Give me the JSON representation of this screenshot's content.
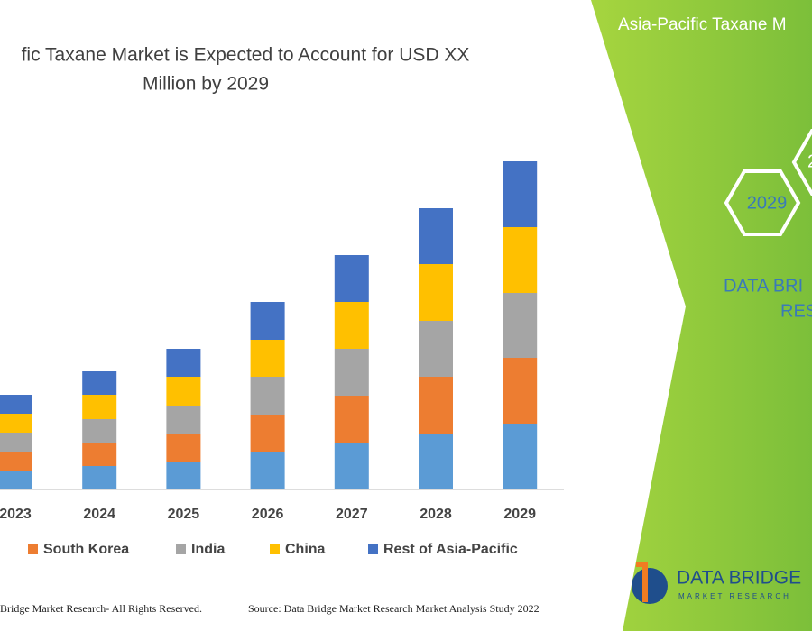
{
  "chart_data": {
    "type": "stacked_bar",
    "title_lines": [
      "fic Taxane Market is Expected to Account for USD XX",
      "Million by 2029"
    ],
    "categories": [
      "2023",
      "2024",
      "2025",
      "2026",
      "2027",
      "2028",
      "2029"
    ],
    "series": [
      {
        "name": null,
        "color": "#5b9bd5",
        "values": [
          21,
          26,
          31,
          42,
          52,
          62,
          73
        ]
      },
      {
        "name": "South Korea",
        "color": "#ed7d31",
        "values": [
          21,
          26,
          31,
          41,
          52,
          63,
          73
        ]
      },
      {
        "name": "India",
        "color": "#a5a5a5",
        "values": [
          21,
          26,
          31,
          42,
          52,
          62,
          72
        ]
      },
      {
        "name": "China",
        "color": "#ffc000",
        "values": [
          21,
          27,
          32,
          41,
          52,
          63,
          73
        ]
      },
      {
        "name": "Rest of Asia-Pacific",
        "color": "#4472c4",
        "values": [
          21,
          26,
          31,
          42,
          52,
          62,
          73
        ]
      }
    ],
    "ylim": [
      0,
      380
    ]
  },
  "panel": {
    "heading": "Asia-Pacific Taxane M",
    "hex_labels": [
      "2029",
      "2"
    ],
    "brand_lines": [
      "DATA BRI",
      "RES"
    ],
    "logo": {
      "name": "DATA BRIDGE",
      "tagline": "MARKET RESEARCH"
    }
  },
  "footer": {
    "left": "Bridge Market Research- All Rights Reserved.",
    "right": "Source: Data Bridge Market Research Market Analysis Study 2022"
  }
}
